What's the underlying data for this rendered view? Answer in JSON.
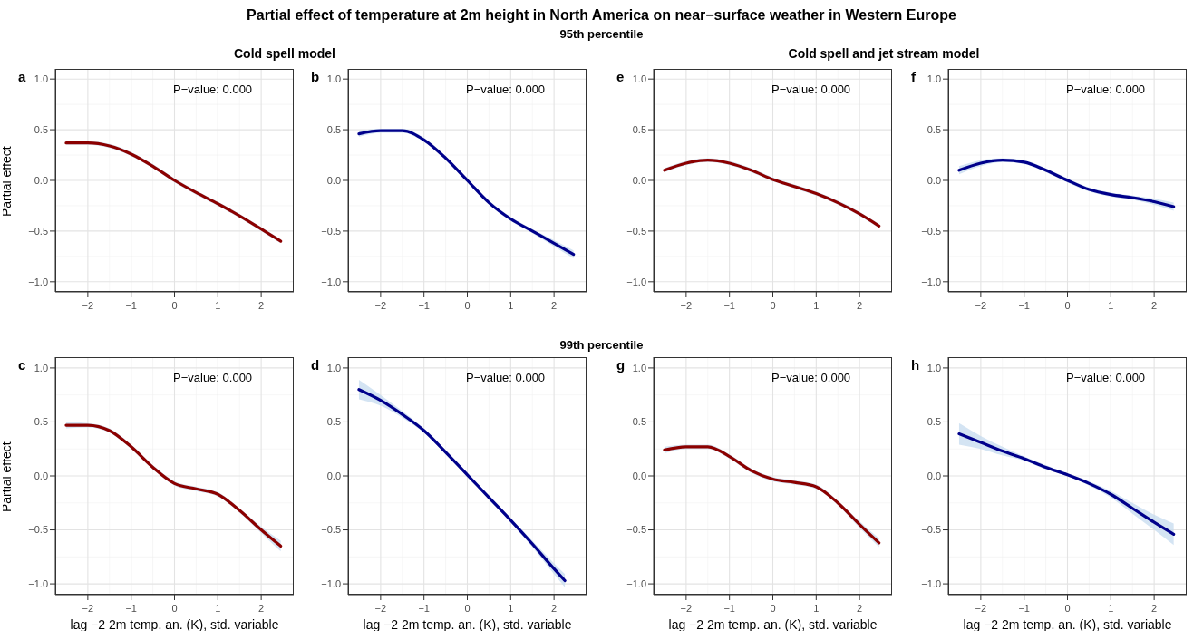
{
  "chart_data": [
    {
      "type": "line",
      "title": "Partial effect of temperature at 2m height in North America on near−surface weather in Western Europe",
      "ylabel": "Partial effect",
      "annotations": [
        "a",
        "P−value: 0.000",
        "Cold spell model"
      ],
      "x": [
        -2.5,
        -2,
        -1.5,
        -1,
        -0.5,
        0,
        0.5,
        1,
        1.5,
        2,
        2.45
      ],
      "xlim": [
        -2.75,
        2.75
      ],
      "ylim": [
        -1.1,
        1.1
      ],
      "xticks": [
        -2,
        -1,
        0,
        1,
        2
      ],
      "yticks": [
        {
          "value": -1,
          "label": "−1.0"
        },
        {
          "value": -0.5,
          "label": "−0.5"
        },
        {
          "value": 0,
          "label": "0.0"
        },
        {
          "value": 0.5,
          "label": "0.5"
        },
        {
          "value": 1,
          "label": "1.0"
        }
      ],
      "grid": true,
      "line_style": "solid",
      "marker": "none",
      "series": [
        {
          "color": "#8b0000",
          "values": [
            0.37,
            0.37,
            0.34,
            0.26,
            0.14,
            0.0,
            -0.12,
            -0.23,
            -0.35,
            -0.48,
            -0.6
          ],
          "lower": [
            0.35,
            0.35,
            0.32,
            0.24,
            0.12,
            -0.02,
            -0.14,
            -0.25,
            -0.37,
            -0.5,
            -0.62
          ],
          "upper": [
            0.39,
            0.39,
            0.36,
            0.28,
            0.16,
            0.02,
            -0.1,
            -0.21,
            -0.33,
            -0.46,
            -0.58
          ]
        }
      ]
    },
    {
      "type": "line",
      "subtitle": "95th percentile",
      "annotations": [
        "b",
        "P−value: 0.000"
      ],
      "x": [
        -2.5,
        -2,
        -1.5,
        -1,
        -0.5,
        0,
        0.5,
        1,
        1.5,
        2,
        2.45
      ],
      "xlim": [
        -2.75,
        2.75
      ],
      "ylim": [
        -1.1,
        1.1
      ],
      "xticks": [
        -2,
        -1,
        0,
        1,
        2
      ],
      "yticks": [
        {
          "value": -1,
          "label": "−1.0"
        },
        {
          "value": -0.5,
          "label": "−0.5"
        },
        {
          "value": 0,
          "label": "0.0"
        },
        {
          "value": 0.5,
          "label": "0.5"
        },
        {
          "value": 1,
          "label": "1.0"
        }
      ],
      "grid": true,
      "line_style": "solid",
      "marker": "none",
      "series": [
        {
          "color": "#00008b",
          "values": [
            0.46,
            0.49,
            0.49,
            0.4,
            0.22,
            0.0,
            -0.22,
            -0.38,
            -0.5,
            -0.62,
            -0.73
          ],
          "lower": [
            0.43,
            0.47,
            0.47,
            0.38,
            0.2,
            -0.02,
            -0.24,
            -0.4,
            -0.52,
            -0.65,
            -0.77
          ],
          "upper": [
            0.49,
            0.51,
            0.51,
            0.42,
            0.24,
            0.02,
            -0.2,
            -0.36,
            -0.48,
            -0.59,
            -0.69
          ]
        }
      ]
    },
    {
      "type": "line",
      "annotations": [
        "e",
        "P−value: 0.000",
        "Cold spell and jet stream model"
      ],
      "x": [
        -2.5,
        -2,
        -1.5,
        -1,
        -0.5,
        0,
        0.5,
        1,
        1.5,
        2,
        2.45
      ],
      "xlim": [
        -2.75,
        2.75
      ],
      "ylim": [
        -1.1,
        1.1
      ],
      "xticks": [
        -2,
        -1,
        0,
        1,
        2
      ],
      "yticks": [
        {
          "value": -1,
          "label": "−1.0"
        },
        {
          "value": -0.5,
          "label": "−0.5"
        },
        {
          "value": 0,
          "label": "0.0"
        },
        {
          "value": 0.5,
          "label": "0.5"
        },
        {
          "value": 1,
          "label": "1.0"
        }
      ],
      "grid": true,
      "line_style": "solid",
      "marker": "none",
      "series": [
        {
          "color": "#8b0000",
          "values": [
            0.1,
            0.17,
            0.2,
            0.17,
            0.1,
            0.01,
            -0.06,
            -0.13,
            -0.22,
            -0.33,
            -0.45
          ],
          "lower": [
            0.08,
            0.15,
            0.18,
            0.15,
            0.08,
            -0.01,
            -0.08,
            -0.15,
            -0.24,
            -0.35,
            -0.47
          ],
          "upper": [
            0.12,
            0.19,
            0.22,
            0.19,
            0.12,
            0.03,
            -0.04,
            -0.11,
            -0.2,
            -0.31,
            -0.43
          ]
        }
      ]
    },
    {
      "type": "line",
      "annotations": [
        "f",
        "P−value: 0.000"
      ],
      "x": [
        -2.5,
        -2,
        -1.5,
        -1,
        -0.5,
        0,
        0.5,
        1,
        1.5,
        2,
        2.45
      ],
      "xlim": [
        -2.75,
        2.75
      ],
      "ylim": [
        -1.1,
        1.1
      ],
      "xticks": [
        -2,
        -1,
        0,
        1,
        2
      ],
      "yticks": [
        {
          "value": -1,
          "label": "−1.0"
        },
        {
          "value": -0.5,
          "label": "−0.5"
        },
        {
          "value": 0,
          "label": "0.0"
        },
        {
          "value": 0.5,
          "label": "0.5"
        },
        {
          "value": 1,
          "label": "1.0"
        }
      ],
      "grid": true,
      "line_style": "solid",
      "marker": "none",
      "series": [
        {
          "color": "#00008b",
          "values": [
            0.1,
            0.17,
            0.2,
            0.18,
            0.1,
            0.0,
            -0.09,
            -0.14,
            -0.17,
            -0.21,
            -0.26
          ],
          "lower": [
            0.06,
            0.14,
            0.18,
            0.16,
            0.08,
            -0.02,
            -0.11,
            -0.16,
            -0.19,
            -0.24,
            -0.3
          ],
          "upper": [
            0.14,
            0.2,
            0.22,
            0.2,
            0.12,
            0.02,
            -0.07,
            -0.12,
            -0.15,
            -0.18,
            -0.22
          ]
        }
      ]
    },
    {
      "type": "line",
      "ylabel": "Partial effect",
      "xlabel": "lag −2 2m temp. an. (K), std. variable",
      "annotations": [
        "c",
        "P−value: 0.000"
      ],
      "x": [
        -2.5,
        -2,
        -1.5,
        -1,
        -0.5,
        0,
        0.5,
        1,
        1.5,
        2,
        2.45
      ],
      "xlim": [
        -2.75,
        2.75
      ],
      "ylim": [
        -1.1,
        1.1
      ],
      "xticks": [
        -2,
        -1,
        0,
        1,
        2
      ],
      "yticks": [
        {
          "value": -1,
          "label": "−1.0"
        },
        {
          "value": -0.5,
          "label": "−0.5"
        },
        {
          "value": 0,
          "label": "0.0"
        },
        {
          "value": 0.5,
          "label": "0.5"
        },
        {
          "value": 1,
          "label": "1.0"
        }
      ],
      "grid": true,
      "line_style": "solid",
      "marker": "none",
      "series": [
        {
          "color": "#8b0000",
          "values": [
            0.47,
            0.47,
            0.42,
            0.27,
            0.08,
            -0.07,
            -0.12,
            -0.17,
            -0.32,
            -0.5,
            -0.65
          ],
          "lower": [
            0.44,
            0.45,
            0.4,
            0.25,
            0.06,
            -0.09,
            -0.14,
            -0.19,
            -0.34,
            -0.53,
            -0.7
          ],
          "upper": [
            0.5,
            0.49,
            0.44,
            0.29,
            0.1,
            -0.05,
            -0.1,
            -0.15,
            -0.3,
            -0.47,
            -0.6
          ]
        }
      ]
    },
    {
      "type": "line",
      "subtitle": "99th percentile",
      "xlabel": "lag −2 2m temp. an. (K), std. variable",
      "annotations": [
        "d",
        "P−value: 0.000"
      ],
      "x": [
        -2.5,
        -2,
        -1.5,
        -1,
        -0.5,
        0,
        0.5,
        1,
        1.5,
        2,
        2.25
      ],
      "xlim": [
        -2.75,
        2.75
      ],
      "ylim": [
        -1.1,
        1.1
      ],
      "xticks": [
        -2,
        -1,
        0,
        1,
        2
      ],
      "yticks": [
        {
          "value": -1,
          "label": "−1.0"
        },
        {
          "value": -0.5,
          "label": "−0.5"
        },
        {
          "value": 0,
          "label": "0.0"
        },
        {
          "value": 0.5,
          "label": "0.5"
        },
        {
          "value": 1,
          "label": "1.0"
        }
      ],
      "grid": true,
      "line_style": "solid",
      "marker": "none",
      "series": [
        {
          "color": "#00008b",
          "values": [
            0.8,
            0.7,
            0.57,
            0.42,
            0.22,
            0.01,
            -0.2,
            -0.41,
            -0.63,
            -0.86,
            -0.97
          ],
          "lower": [
            0.71,
            0.65,
            0.54,
            0.4,
            0.2,
            -0.01,
            -0.22,
            -0.43,
            -0.66,
            -0.91,
            -1.03
          ],
          "upper": [
            0.89,
            0.75,
            0.6,
            0.44,
            0.24,
            0.03,
            -0.18,
            -0.39,
            -0.6,
            -0.81,
            -0.91
          ]
        }
      ]
    },
    {
      "type": "line",
      "xlabel": "lag −2 2m temp. an. (K), std. variable",
      "annotations": [
        "g",
        "P−value: 0.000"
      ],
      "x": [
        -2.5,
        -2,
        -1.5,
        -1,
        -0.5,
        0,
        0.5,
        1,
        1.5,
        2,
        2.45
      ],
      "xlim": [
        -2.75,
        2.75
      ],
      "ylim": [
        -1.1,
        1.1
      ],
      "xticks": [
        -2,
        -1,
        0,
        1,
        2
      ],
      "yticks": [
        {
          "value": -1,
          "label": "−1.0"
        },
        {
          "value": -0.5,
          "label": "−0.5"
        },
        {
          "value": 0,
          "label": "0.0"
        },
        {
          "value": 0.5,
          "label": "0.5"
        },
        {
          "value": 1,
          "label": "1.0"
        }
      ],
      "grid": true,
      "line_style": "solid",
      "marker": "none",
      "series": [
        {
          "color": "#8b0000",
          "values": [
            0.24,
            0.27,
            0.27,
            0.18,
            0.05,
            -0.03,
            -0.06,
            -0.1,
            -0.25,
            -0.45,
            -0.62
          ],
          "lower": [
            0.21,
            0.25,
            0.25,
            0.16,
            0.03,
            -0.05,
            -0.08,
            -0.12,
            -0.27,
            -0.48,
            -0.66
          ],
          "upper": [
            0.27,
            0.29,
            0.29,
            0.2,
            0.07,
            -0.01,
            -0.04,
            -0.08,
            -0.23,
            -0.42,
            -0.58
          ]
        }
      ]
    },
    {
      "type": "line",
      "xlabel": "lag −2 2m temp. an. (K), std. variable",
      "annotations": [
        "h",
        "P−value: 0.000"
      ],
      "x": [
        -2.5,
        -2,
        -1.5,
        -1,
        -0.5,
        0,
        0.5,
        1,
        1.5,
        2,
        2.45
      ],
      "xlim": [
        -2.75,
        2.75
      ],
      "ylim": [
        -1.1,
        1.1
      ],
      "xticks": [
        -2,
        -1,
        0,
        1,
        2
      ],
      "yticks": [
        {
          "value": -1,
          "label": "−1.0"
        },
        {
          "value": -0.5,
          "label": "−0.5"
        },
        {
          "value": 0,
          "label": "0.0"
        },
        {
          "value": 0.5,
          "label": "0.5"
        },
        {
          "value": 1,
          "label": "1.0"
        }
      ],
      "grid": true,
      "line_style": "solid",
      "marker": "none",
      "series": [
        {
          "color": "#00008b",
          "values": [
            0.39,
            0.31,
            0.23,
            0.16,
            0.08,
            0.01,
            -0.07,
            -0.17,
            -0.3,
            -0.43,
            -0.54
          ],
          "lower": [
            0.29,
            0.25,
            0.19,
            0.14,
            0.06,
            0.0,
            -0.09,
            -0.2,
            -0.35,
            -0.5,
            -0.64
          ],
          "upper": [
            0.49,
            0.37,
            0.27,
            0.18,
            0.1,
            0.02,
            -0.05,
            -0.14,
            -0.25,
            -0.36,
            -0.44
          ]
        }
      ]
    }
  ]
}
